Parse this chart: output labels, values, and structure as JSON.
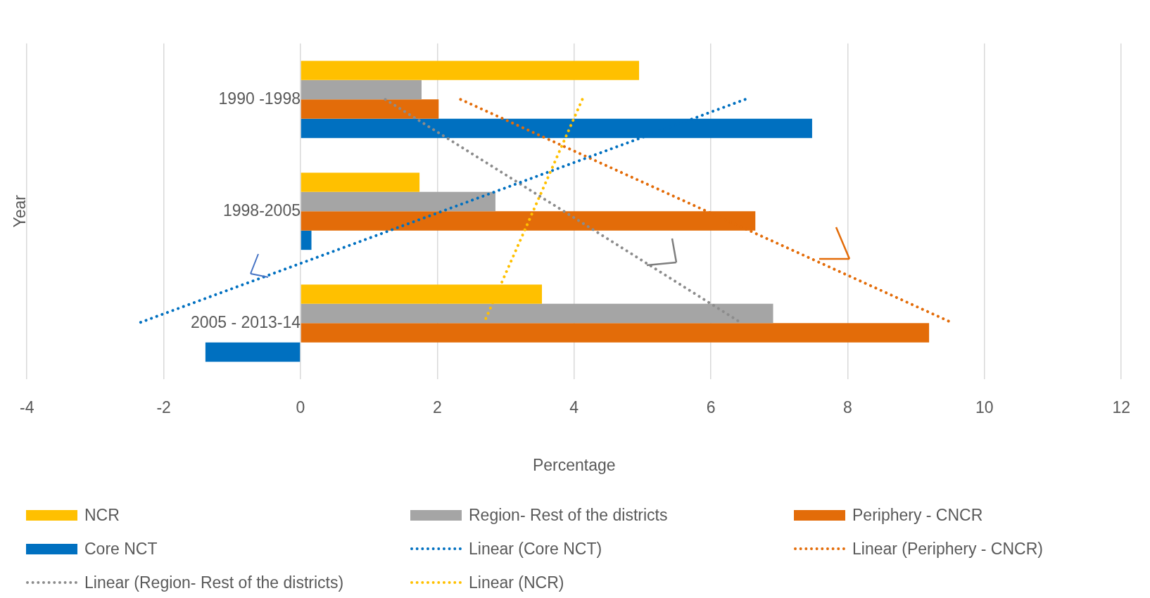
{
  "chart_data": {
    "type": "bar",
    "orientation": "horizontal",
    "xlabel": "Percentage",
    "ylabel": "Year",
    "categories": [
      "1990 -1998",
      "1998-2005",
      "2005 - 2013-14"
    ],
    "series": [
      {
        "name": "NCR",
        "color": "#ffc000",
        "values": [
          4.95,
          1.74,
          3.53
        ]
      },
      {
        "name": "Region- Rest of the districts",
        "color": "#a5a5a5",
        "values": [
          1.77,
          2.85,
          6.91
        ]
      },
      {
        "name": "Periphery - CNCR",
        "color": "#e36c09",
        "values": [
          2.02,
          6.65,
          9.19
        ]
      },
      {
        "name": "Core NCT",
        "color": "#0070c0",
        "values": [
          7.48,
          0.16,
          -1.39
        ]
      },
      {
        "name": "Linear (Core NCT)",
        "type": "line",
        "color": "#0070c0",
        "line_style": "dotted",
        "marker": "none",
        "values": [
          6.5,
          2.07,
          -2.37
        ]
      },
      {
        "name": "Linear (Periphery - CNCR)",
        "type": "line",
        "color": "#e36c09",
        "line_style": "dotted",
        "marker": "none",
        "values": [
          2.34,
          5.94,
          9.54
        ]
      },
      {
        "name": "Linear (Region- Rest of the districts)",
        "type": "line",
        "color": "#8c8c8c",
        "line_style": "dotted",
        "marker": "none",
        "values": [
          1.24,
          3.85,
          6.45
        ]
      },
      {
        "name": "Linear (NCR)",
        "type": "line",
        "color": "#ffc000",
        "line_style": "dotted",
        "marker": "none",
        "values": [
          4.12,
          3.4,
          2.68
        ]
      }
    ],
    "xlim": [
      -4,
      12
    ],
    "xticks": [
      -4,
      -2,
      0,
      2,
      4,
      6,
      8,
      10,
      12
    ],
    "grid": "x",
    "legend": "bottom"
  }
}
